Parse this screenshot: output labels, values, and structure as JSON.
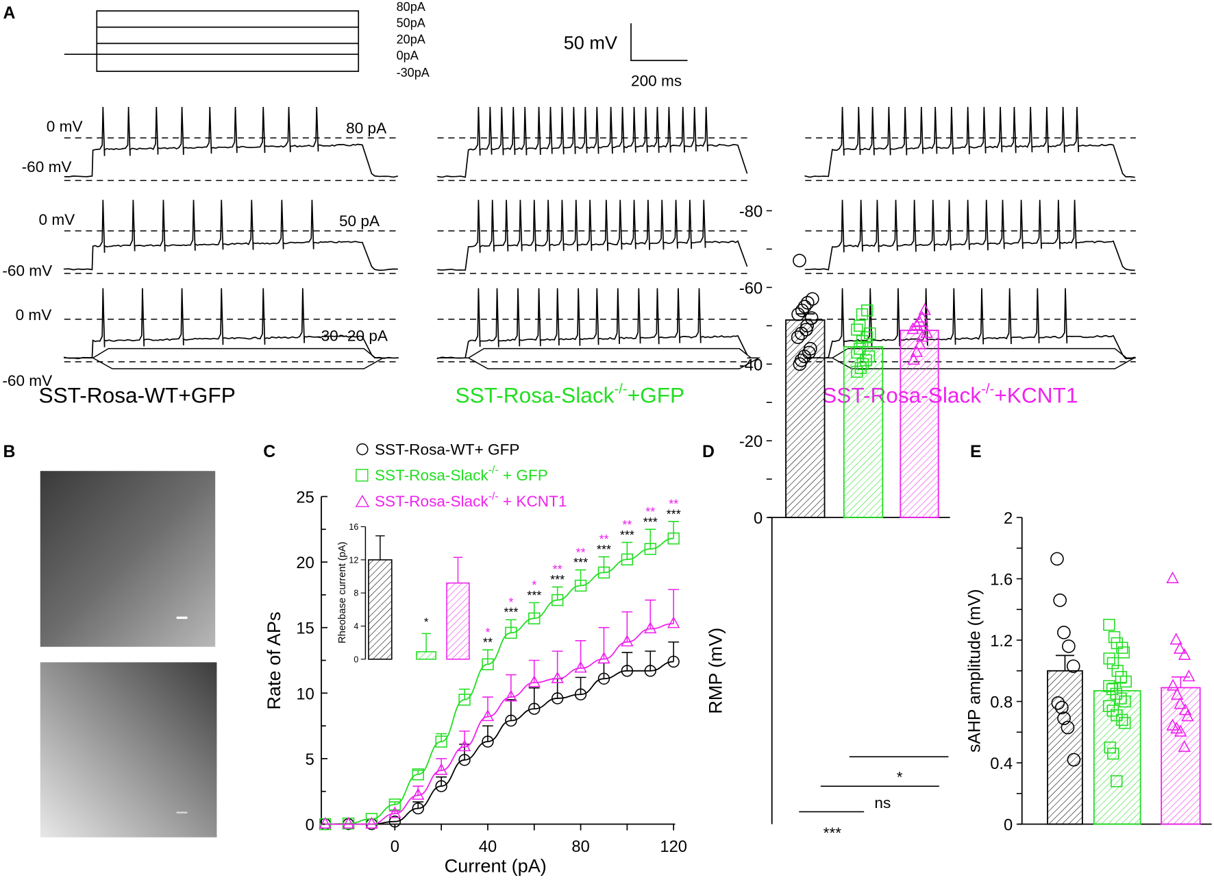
{
  "colors": {
    "wt": "#000000",
    "slack_gfp": "#22dd22",
    "slack_kcnt1": "#ee22ee"
  },
  "panel_labels": {
    "a": "A",
    "b": "B",
    "c": "C",
    "d": "D",
    "e": "E"
  },
  "panelA": {
    "stimulus_labels": [
      "80pA",
      "50pA",
      "20pA",
      "0pA",
      "-30pA"
    ],
    "scale_bar": {
      "voltage": "50 mV",
      "time": "200 ms"
    },
    "rows": [
      {
        "zero_label": "0 mV",
        "rest_label": "-60 mV",
        "current_label": "80 pA"
      },
      {
        "zero_label": "0 mV",
        "rest_label": "-60 mV",
        "current_label": "50 pA"
      },
      {
        "zero_label": "0 mV",
        "rest_label": "-60 mV",
        "current_label": "-30~20 pA"
      }
    ],
    "groups": [
      {
        "prefix": "SST-Rosa-WT+GFP",
        "sup": "",
        "suffix": "",
        "spike_counts": [
          9,
          8,
          6
        ]
      },
      {
        "prefix": "SST-Rosa-Slack",
        "sup": "-/-",
        "suffix": "+GFP",
        "spike_counts": [
          20,
          17,
          12
        ]
      },
      {
        "prefix": "SST-Rosa-Slack",
        "sup": "-/-",
        "suffix": "+KCNT1",
        "spike_counts": [
          16,
          14,
          9
        ]
      }
    ]
  },
  "chart_data": [
    {
      "id": "C",
      "type": "line",
      "xlabel": "Current (pA)",
      "ylabel": "Rate of APs",
      "xlim": [
        -30,
        120
      ],
      "ylim": [
        0,
        25
      ],
      "xticks": [
        0,
        40,
        80,
        120
      ],
      "yticks": [
        0,
        5,
        10,
        15,
        20,
        25
      ],
      "legend_position": "top",
      "x": [
        -30,
        -20,
        -10,
        0,
        10,
        20,
        30,
        40,
        50,
        60,
        70,
        80,
        90,
        100,
        110,
        120
      ],
      "series": [
        {
          "name": "SST-Rosa-WT+ GFP",
          "prefix": "SST-Rosa-WT+ GFP",
          "sup": "",
          "suffix": "",
          "marker": "circle",
          "values": [
            0,
            0,
            0,
            0.2,
            1.2,
            2.9,
            4.9,
            6.3,
            7.9,
            8.8,
            9.6,
            9.9,
            11.1,
            11.7,
            11.7,
            12.4
          ],
          "errors": [
            0,
            0,
            0,
            0.1,
            0.5,
            0.7,
            1.2,
            1.2,
            1.6,
            1.6,
            1.5,
            1.3,
            1.2,
            1.4,
            1.5,
            1.5
          ]
        },
        {
          "name": "SST-Rosa-Slack-/- + GFP",
          "prefix": "SST-Rosa-Slack",
          "sup": "-/-",
          "suffix": " + GFP",
          "marker": "square",
          "values": [
            0,
            0.05,
            0.4,
            1.5,
            3.8,
            6.3,
            9.5,
            12.2,
            14.6,
            15.7,
            17.1,
            18.2,
            19.2,
            20.2,
            21.0,
            21.8
          ],
          "errors": [
            0,
            0,
            0.1,
            0.2,
            0.3,
            0.6,
            0.8,
            1.1,
            1.0,
            1.2,
            1.0,
            1.2,
            1.2,
            1.3,
            1.5,
            1.3
          ]
        },
        {
          "name": "SST-Rosa-Slack-/- + KCNT1",
          "prefix": "SST-Rosa-Slack",
          "sup": "-/-",
          "suffix": " + KCNT1",
          "marker": "triangle",
          "values": [
            0,
            0,
            0,
            0.8,
            2.2,
            4.1,
            5.9,
            8.2,
            9.7,
            10.8,
            11.1,
            11.9,
            12.6,
            13.9,
            14.9,
            15.3
          ],
          "errors": [
            0,
            0,
            0,
            0.2,
            0.7,
            0.9,
            1.2,
            1.5,
            1.7,
            1.7,
            2.1,
            2.1,
            2.4,
            2.3,
            2.2,
            2.6
          ]
        }
      ],
      "significance": {
        "x": [
          40,
          50,
          60,
          70,
          80,
          90,
          100,
          110,
          120
        ],
        "wt_vs_slack": [
          "**",
          "***",
          "***",
          "***",
          "***",
          "***",
          "***",
          "***",
          "***"
        ],
        "kcnt1_vs_slack": [
          "*",
          "*",
          "*",
          "**",
          "**",
          "**",
          "**",
          "**",
          "**"
        ]
      }
    },
    {
      "id": "C-inset",
      "type": "bar",
      "ylabel": "Rheobase current (pA)",
      "ylim": [
        0,
        16
      ],
      "yticks": [
        0,
        4,
        8,
        12,
        16
      ],
      "categories": [
        "SST-Rosa-WT+GFP",
        "SST-Rosa-Slack-/-+GFP",
        "SST-Rosa-Slack-/-+KCNT1"
      ],
      "values": [
        12.0,
        0.9,
        9.2
      ],
      "errors": [
        2.9,
        2.2,
        3.1
      ],
      "annotations": [
        "",
        "*",
        ""
      ]
    },
    {
      "id": "D",
      "type": "bar",
      "ylabel": "RMP (mV)",
      "ylim": [
        -80,
        0
      ],
      "yticks": [
        0,
        -20,
        -40,
        -60,
        -80
      ],
      "categories": [
        "SST-Rosa-WT+GFP",
        "SST-Rosa-Slack-/-+GFP",
        "SST-Rosa-Slack-/-+KCNT1"
      ],
      "values": [
        -51.5,
        -44.5,
        -48.8
      ],
      "errors": [
        1.6,
        1.4,
        1.0
      ],
      "points": [
        [
          -40,
          -41,
          -42,
          -43,
          -44,
          -47,
          -48,
          -49,
          -50,
          -52,
          -53,
          -54,
          -55,
          -56,
          -57,
          -67
        ],
        [
          -38,
          -39,
          -40,
          -41,
          -42,
          -43,
          -44,
          -46,
          -47,
          -48,
          -49,
          -50,
          -53,
          -54
        ],
        [
          -41,
          -43,
          -45,
          -47,
          -48,
          -49,
          -50,
          -51,
          -52,
          -54
        ]
      ],
      "comparisons": [
        {
          "groups": [
            1,
            2
          ],
          "label": "*"
        },
        {
          "groups": [
            0,
            2
          ],
          "label": "ns"
        },
        {
          "groups": [
            0,
            1
          ],
          "label": "***"
        }
      ]
    },
    {
      "id": "E",
      "type": "bar",
      "ylabel": "sAHP amplitude (mV)",
      "ylim": [
        0,
        2
      ],
      "yticks": [
        0,
        0.4,
        0.8,
        1.2,
        1.6,
        2
      ],
      "categories": [
        "SST-Rosa-WT+GFP",
        "SST-Rosa-Slack-/-+GFP",
        "SST-Rosa-Slack-/-+KCNT1"
      ],
      "values": [
        1.0,
        0.87,
        0.89
      ],
      "errors": [
        0.1,
        0.05,
        0.07
      ],
      "points": [
        [
          1.73,
          1.46,
          1.25,
          1.16,
          1.03,
          0.79,
          0.76,
          0.69,
          0.63,
          0.42
        ],
        [
          1.3,
          1.22,
          1.18,
          1.15,
          1.12,
          1.08,
          1.05,
          1.0,
          0.96,
          0.93,
          0.9,
          0.88,
          0.85,
          0.82,
          0.8,
          0.77,
          0.74,
          0.71,
          0.68,
          0.66,
          0.5,
          0.46,
          0.28
        ],
        [
          1.6,
          1.2,
          1.14,
          1.1,
          0.96,
          0.9,
          0.84,
          0.78,
          0.74,
          0.7,
          0.64,
          0.62,
          0.6,
          0.5
        ]
      ]
    }
  ]
}
